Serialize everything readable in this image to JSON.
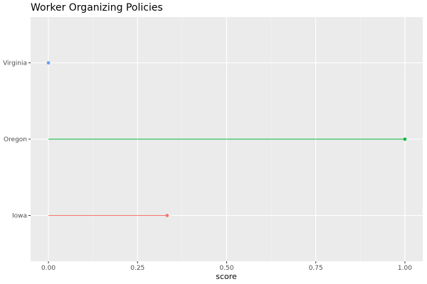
{
  "chart_data": {
    "type": "scatter",
    "title": "Worker Organizing Policies",
    "xlabel": "score",
    "ylabel": "",
    "xlim": [
      -0.05,
      1.05
    ],
    "x_ticks": [
      "0.00",
      "0.25",
      "0.50",
      "0.75",
      "1.00"
    ],
    "x_tick_values": [
      0,
      0.25,
      0.5,
      0.75,
      1.0
    ],
    "categories": [
      "Iowa",
      "Oregon",
      "Virginia"
    ],
    "values": [
      0.333,
      1.0,
      0.0
    ],
    "colors": [
      "#F8766D",
      "#00BA38",
      "#619CFF"
    ],
    "style": "lollipop",
    "grid": true,
    "panel_background": "#EBEBEB",
    "legend": "none"
  }
}
